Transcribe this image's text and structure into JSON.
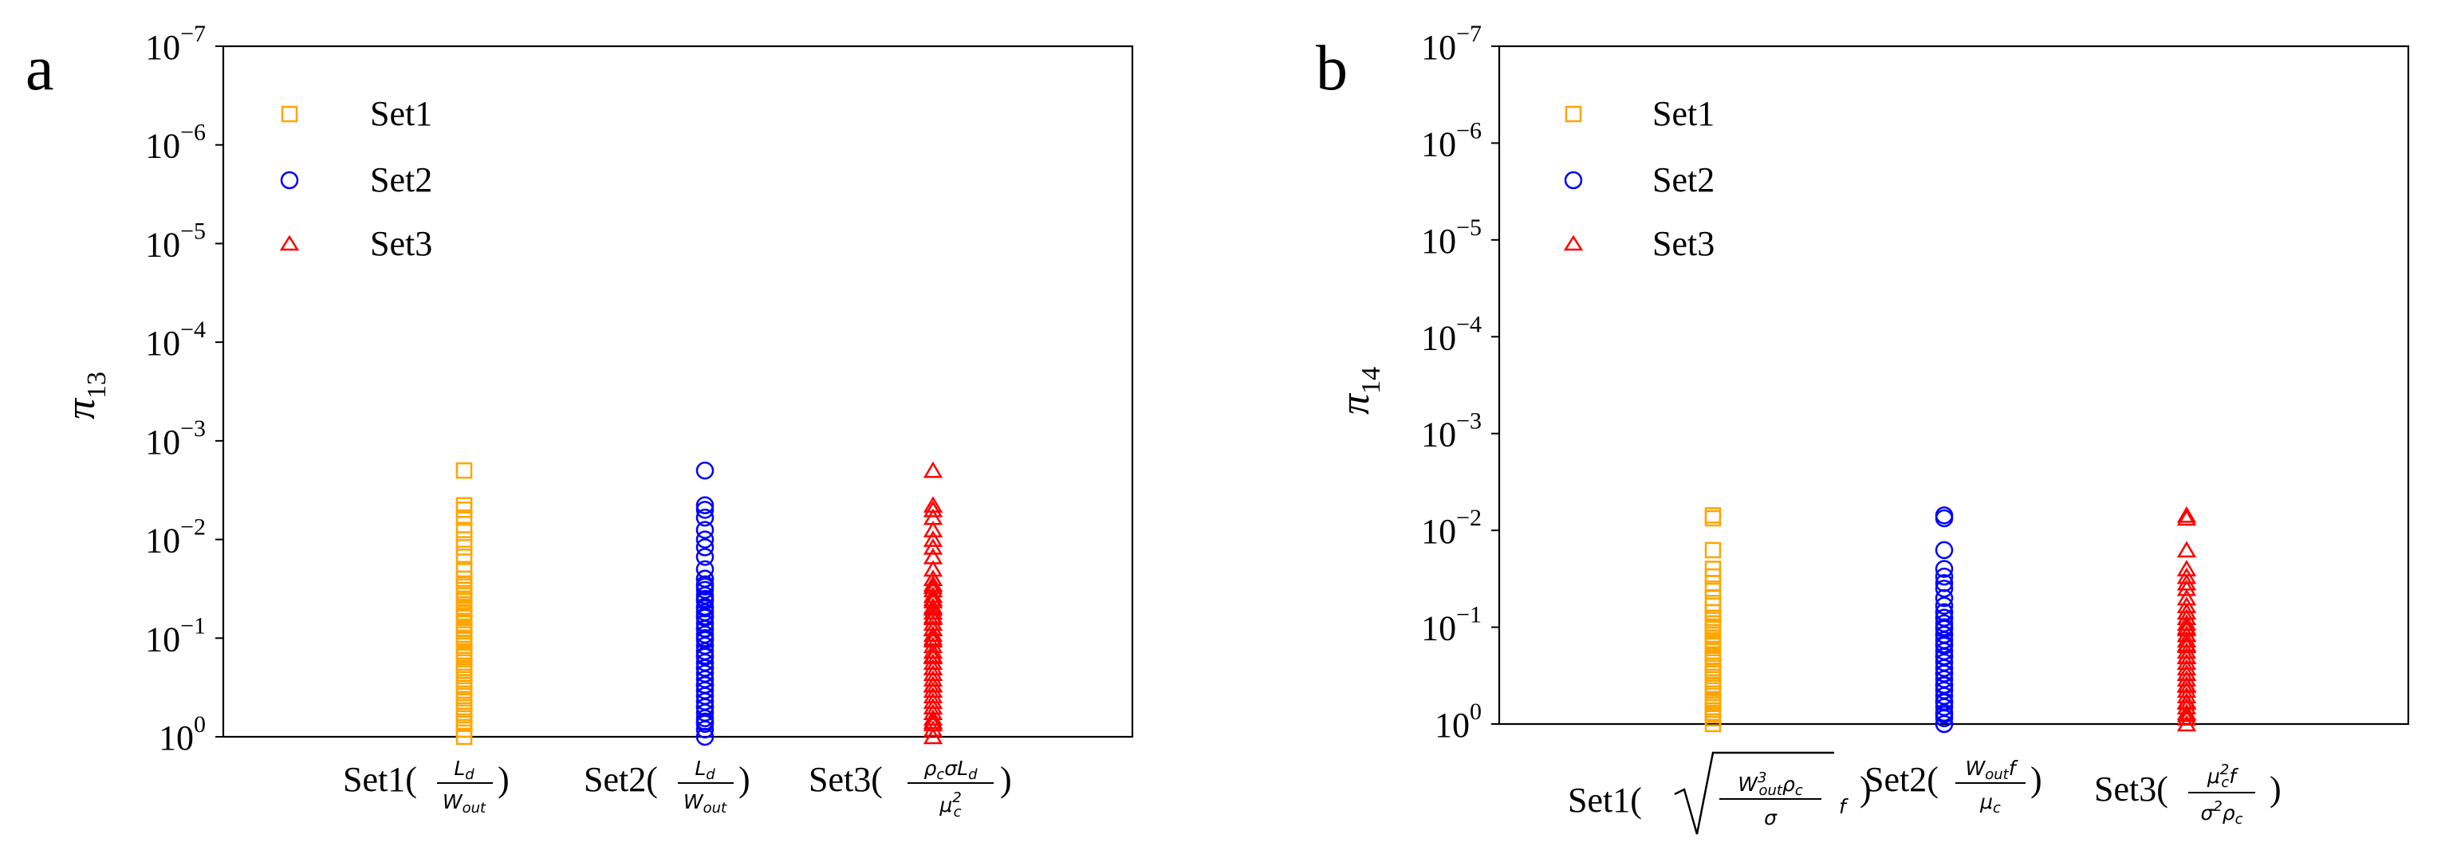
{
  "chart_data": [
    {
      "type": "scatter",
      "panel": "a",
      "ylabel_base": "π",
      "ylabel_sub": "13",
      "y_scale": "log",
      "y_axis_inverted": true,
      "ylim": [
        1e-07,
        1
      ],
      "y_ticks": [
        {
          "base": "10",
          "exp": "−7"
        },
        {
          "base": "10",
          "exp": "−6"
        },
        {
          "base": "10",
          "exp": "−5"
        },
        {
          "base": "10",
          "exp": "−4"
        },
        {
          "base": "10",
          "exp": "−3"
        },
        {
          "base": "10",
          "exp": "−2"
        },
        {
          "base": "10",
          "exp": "−1"
        },
        {
          "base": "10",
          "exp": "0"
        }
      ],
      "legend": {
        "location": "upper-left"
      },
      "categories": [
        {
          "prefix": "Set1(",
          "num": "L",
          "num_sub": "d",
          "den": "W",
          "den_sub": "out",
          "suffix": ")"
        },
        {
          "prefix": "Set2(",
          "num": "L",
          "num_sub": "d",
          "den": "W",
          "den_sub": "out",
          "suffix": ")"
        },
        {
          "prefix": "Set3(",
          "num": "ρ",
          "num_sub": "c",
          "num_rest": "σL",
          "num_rest_sub": "d",
          "den": "μ",
          "den_sub": "c",
          "den_sup": "2",
          "suffix": ")"
        }
      ],
      "series": [
        {
          "name": "Set1",
          "marker": "square",
          "color": "#FFA500",
          "values": [
            0.002,
            0.0045,
            0.005,
            0.006,
            0.008,
            0.01,
            0.012,
            0.015,
            0.02,
            0.025,
            0.03,
            0.04,
            0.05,
            0.06,
            0.08,
            0.1,
            0.15,
            0.2,
            0.3,
            0.5,
            0.7,
            1.0
          ]
        },
        {
          "name": "Set2",
          "marker": "circle",
          "color": "#0000FF",
          "values": [
            0.002,
            0.0045,
            0.005,
            0.006,
            0.008,
            0.01,
            0.012,
            0.015,
            0.02,
            0.025,
            0.03,
            0.04,
            0.05,
            0.06,
            0.08,
            0.1,
            0.15,
            0.2,
            0.3,
            0.5,
            0.7,
            1.0
          ]
        },
        {
          "name": "Set3",
          "marker": "triangle",
          "color": "#FF0000",
          "values": [
            0.002,
            0.0045,
            0.005,
            0.006,
            0.008,
            0.01,
            0.012,
            0.015,
            0.02,
            0.025,
            0.03,
            0.04,
            0.05,
            0.06,
            0.08,
            0.1,
            0.15,
            0.2,
            0.3,
            0.5,
            0.7,
            1.0
          ]
        }
      ]
    },
    {
      "type": "scatter",
      "panel": "b",
      "ylabel_base": "π",
      "ylabel_sub": "14",
      "y_scale": "log",
      "y_axis_inverted": true,
      "ylim": [
        1e-07,
        1
      ],
      "y_ticks": [
        {
          "base": "10",
          "exp": "−7"
        },
        {
          "base": "10",
          "exp": "−6"
        },
        {
          "base": "10",
          "exp": "−5"
        },
        {
          "base": "10",
          "exp": "−4"
        },
        {
          "base": "10",
          "exp": "−3"
        },
        {
          "base": "10",
          "exp": "−2"
        },
        {
          "base": "10",
          "exp": "−1"
        },
        {
          "base": "10",
          "exp": "0"
        }
      ],
      "legend": {
        "location": "upper-left"
      },
      "categories": [
        {
          "prefix": "Set1(",
          "root": true,
          "num": "W",
          "num_sup": "3",
          "num_sub": "out",
          "num_rest": "ρ",
          "num_rest_sub": "c",
          "den": "σ",
          "after_frac": "f",
          "suffix": ")"
        },
        {
          "prefix": "Set2(",
          "num": "W",
          "num_sub": "out",
          "num_rest": "f",
          "den": "μ",
          "den_sub": "c",
          "suffix": ")"
        },
        {
          "prefix": "Set3(",
          "num": "μ",
          "num_sup": "2",
          "num_sub": "c",
          "num_rest": "f",
          "den": "σ",
          "den_sup": "2",
          "den_rest": "ρ",
          "den_rest_sub": "c",
          "suffix": ")"
        }
      ],
      "series": [
        {
          "name": "Set1",
          "marker": "square",
          "color": "#FFA500",
          "values": [
            0.007,
            0.0075,
            0.016,
            0.025,
            0.03,
            0.035,
            0.04,
            0.05,
            0.06,
            0.07,
            0.08,
            0.1,
            0.12,
            0.15,
            0.2,
            0.3,
            0.4,
            0.6,
            0.8,
            1.0
          ]
        },
        {
          "name": "Set2",
          "marker": "circle",
          "color": "#0000FF",
          "values": [
            0.007,
            0.0075,
            0.016,
            0.025,
            0.03,
            0.035,
            0.04,
            0.05,
            0.06,
            0.07,
            0.08,
            0.1,
            0.12,
            0.15,
            0.2,
            0.3,
            0.4,
            0.6,
            0.8,
            1.0
          ]
        },
        {
          "name": "Set3",
          "marker": "triangle",
          "color": "#FF0000",
          "values": [
            0.007,
            0.0075,
            0.016,
            0.025,
            0.03,
            0.035,
            0.04,
            0.05,
            0.06,
            0.07,
            0.08,
            0.1,
            0.12,
            0.15,
            0.2,
            0.3,
            0.4,
            0.6,
            0.8,
            1.0
          ]
        }
      ]
    }
  ]
}
